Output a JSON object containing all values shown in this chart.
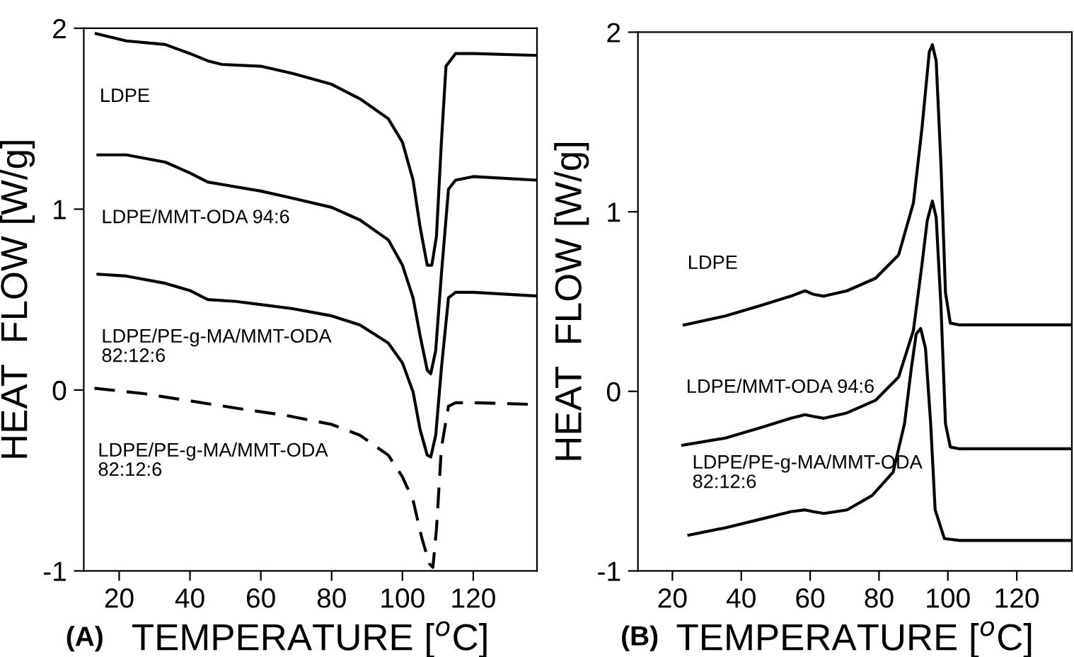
{
  "chart_data": [
    {
      "type": "line",
      "xlabel": "TEMPERATURE [$^{o}$C]",
      "ylabel": "HEAT  FLOW [W/g]",
      "annotations": [
        "(A)"
      ],
      "xlim": [
        10,
        138
      ],
      "ylim": [
        -1,
        2
      ],
      "xticks": [
        20,
        40,
        60,
        80,
        100,
        120
      ],
      "yticks": [
        -1,
        0,
        1,
        2
      ],
      "grid": false,
      "legend": false,
      "marker": "none",
      "series": [
        {
          "name": "LDPE",
          "color": "#000000",
          "line_style": "solid",
          "x": [
            13.5,
            22,
            33,
            40,
            45,
            49,
            60,
            69,
            80,
            88,
            96,
            100,
            103,
            105,
            107,
            108.3,
            109.6,
            111,
            112.3,
            115,
            120,
            138
          ],
          "values": [
            1.97,
            1.93,
            1.91,
            1.86,
            1.82,
            1.8,
            1.79,
            1.75,
            1.69,
            1.61,
            1.5,
            1.37,
            1.16,
            0.9,
            0.69,
            0.69,
            0.85,
            1.37,
            1.79,
            1.86,
            1.86,
            1.85
          ]
        },
        {
          "name": "LDPE/MMT-ODA 94:6",
          "color": "#000000",
          "line_style": "solid",
          "x": [
            14,
            22,
            33,
            40,
            45,
            51,
            60,
            69,
            80,
            88,
            96,
            100,
            103,
            105,
            107,
            108,
            109.4,
            111,
            113,
            115,
            120,
            138
          ],
          "values": [
            1.3,
            1.3,
            1.26,
            1.2,
            1.15,
            1.13,
            1.1,
            1.06,
            1.01,
            0.94,
            0.83,
            0.69,
            0.51,
            0.3,
            0.11,
            0.09,
            0.22,
            0.64,
            1.11,
            1.16,
            1.18,
            1.16
          ]
        },
        {
          "name": "LDPE/PE-g-MA/MMT-ODA\n82:12:6",
          "color": "#000000",
          "line_style": "solid",
          "x": [
            14,
            22,
            33,
            40,
            45,
            53,
            61,
            69,
            80,
            88,
            96,
            100,
            103,
            105,
            107,
            108,
            109.4,
            111,
            113,
            115,
            120,
            138
          ],
          "values": [
            0.64,
            0.63,
            0.59,
            0.55,
            0.5,
            0.49,
            0.47,
            0.45,
            0.41,
            0.36,
            0.26,
            0.15,
            -0.01,
            -0.22,
            -0.36,
            -0.37,
            -0.25,
            0.12,
            0.51,
            0.54,
            0.54,
            0.52
          ]
        },
        {
          "name": "LDPE/PE-g-MA/MMT-ODA\n82:12:6",
          "color": "#000000",
          "line_style": "dashed",
          "x": [
            13,
            27,
            40,
            53,
            67,
            80,
            88,
            96,
            100,
            103,
            105.5,
            107.6,
            108.6,
            109.6,
            111,
            113,
            115,
            120,
            138
          ],
          "values": [
            0.01,
            -0.02,
            -0.06,
            -0.1,
            -0.14,
            -0.19,
            -0.25,
            -0.36,
            -0.48,
            -0.61,
            -0.82,
            -0.96,
            -0.98,
            -0.77,
            -0.32,
            -0.09,
            -0.07,
            -0.07,
            -0.08
          ]
        }
      ]
    },
    {
      "type": "line",
      "xlabel": "TEMPERATURE [$^{o}$C]",
      "ylabel": "HEAT  FLOW [W/g]",
      "annotations": [
        "(B)"
      ],
      "xlim": [
        10,
        136
      ],
      "ylim": [
        -1,
        2
      ],
      "xticks": [
        20,
        40,
        60,
        80,
        100,
        120
      ],
      "yticks": [
        -1,
        0,
        1,
        2
      ],
      "grid": false,
      "legend": false,
      "marker": "none",
      "series": [
        {
          "name": "LDPE",
          "color": "#000000",
          "line_style": "solid",
          "x": [
            23.4,
            35.4,
            46,
            54.4,
            58.5,
            61,
            64,
            70.7,
            79,
            85.7,
            90,
            92.5,
            94.6,
            95.5,
            96.6,
            98,
            99.3,
            100.7,
            103.4,
            136
          ],
          "values": [
            0.37,
            0.42,
            0.48,
            0.53,
            0.56,
            0.54,
            0.53,
            0.56,
            0.63,
            0.76,
            1.05,
            1.47,
            1.89,
            1.93,
            1.84,
            1.26,
            0.55,
            0.38,
            0.37,
            0.37
          ]
        },
        {
          "name": "LDPE/MMT-ODA 94:6",
          "color": "#000000",
          "line_style": "solid",
          "x": [
            23,
            35.4,
            46,
            54.4,
            58.5,
            61,
            64,
            70.7,
            79,
            85.7,
            90,
            92.5,
            94,
            95.5,
            96.6,
            98,
            99.3,
            100.7,
            103.4,
            136
          ],
          "values": [
            -0.3,
            -0.26,
            -0.2,
            -0.15,
            -0.13,
            -0.14,
            -0.15,
            -0.12,
            -0.05,
            0.08,
            0.34,
            0.71,
            0.95,
            1.06,
            0.97,
            0.47,
            -0.18,
            -0.31,
            -0.32,
            -0.32
          ]
        },
        {
          "name": "LDPE/PE-g-MA/MMT-ODA\n82:12:6",
          "color": "#000000",
          "line_style": "solid",
          "x": [
            24.8,
            35.4,
            46,
            54.4,
            58.5,
            61,
            64,
            70.7,
            78,
            84.1,
            87.4,
            89.4,
            90.8,
            92.1,
            93.5,
            95,
            96.3,
            99,
            103.4,
            136
          ],
          "values": [
            -0.8,
            -0.76,
            -0.71,
            -0.67,
            -0.66,
            -0.67,
            -0.68,
            -0.66,
            -0.58,
            -0.45,
            -0.18,
            0.13,
            0.32,
            0.35,
            0.24,
            -0.18,
            -0.66,
            -0.82,
            -0.83,
            -0.83
          ]
        }
      ]
    }
  ]
}
